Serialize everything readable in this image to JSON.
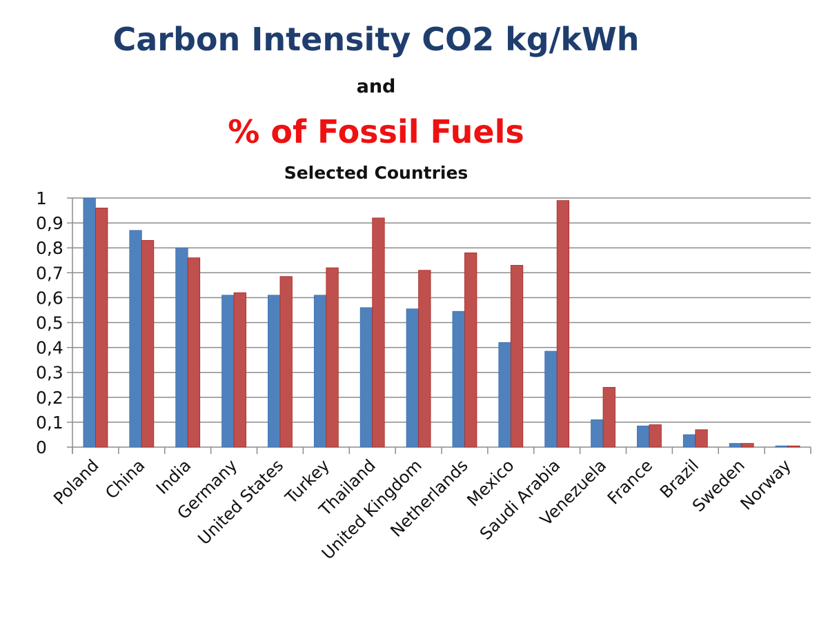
{
  "chart_data": {
    "type": "bar",
    "title": "Carbon Intensity CO2 kg/kWh",
    "title_connector": "and",
    "subtitle": "% of Fossil Fuels",
    "caption": "Selected Countries",
    "xlabel": "",
    "ylabel": "",
    "ylim": [
      0,
      1
    ],
    "yticks": [
      "0",
      "0,1",
      "0,2",
      "0,3",
      "0,4",
      "0,5",
      "0,6",
      "0,7",
      "0,8",
      "0,9",
      "1"
    ],
    "grid": true,
    "legend": "none",
    "categories": [
      "Poland",
      "China",
      "India",
      "Germany",
      "United States",
      "Turkey",
      "Thailand",
      "United Kingdom",
      "Netherlands",
      "Mexico",
      "Saudi Arabia",
      "Venezuela",
      "France",
      "Brazil",
      "Sweden",
      "Norway"
    ],
    "series": [
      {
        "name": "Carbon Intensity CO2 kg/kWh",
        "color": "#4f81bd",
        "values": [
          1.0,
          0.87,
          0.8,
          0.61,
          0.61,
          0.61,
          0.56,
          0.555,
          0.545,
          0.42,
          0.385,
          0.11,
          0.085,
          0.05,
          0.015,
          0.005
        ]
      },
      {
        "name": "% of Fossil Fuels",
        "color": "#c0504d",
        "values": [
          0.96,
          0.83,
          0.76,
          0.62,
          0.685,
          0.72,
          0.92,
          0.71,
          0.78,
          0.73,
          0.99,
          0.24,
          0.09,
          0.07,
          0.015,
          0.005
        ]
      }
    ]
  }
}
